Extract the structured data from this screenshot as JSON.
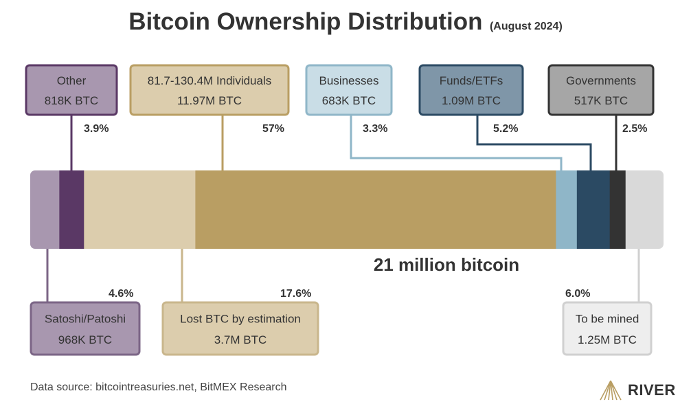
{
  "title": "Bitcoin Ownership Distribution",
  "subtitle": "(August 2024)",
  "total_label": "21 million bitcoin",
  "source": "Data source: bitcointreasuries.net, BitMEX Research",
  "brand": {
    "name": "RIVER",
    "logo_icon": "river-logo-icon",
    "color": "#B99E63"
  },
  "chart_data": {
    "type": "bar",
    "orientation": "horizontal-stacked",
    "total": "21 million bitcoin",
    "segments": [
      {
        "id": "other",
        "name": "Other",
        "value_label": "818K BTC",
        "pct_label": "3.9%",
        "pct": 3.9,
        "color": "#5A3865",
        "box_fill": "#A897AF",
        "box_stroke": "#5A3865",
        "position": "top"
      },
      {
        "id": "satoshi",
        "name": "Satoshi/Patoshi",
        "value_label": "968K BTC",
        "pct_label": "4.6%",
        "pct": 4.6,
        "color": "#A897AF",
        "box_fill": "#A897AF",
        "box_stroke": "#7B6586",
        "position": "bottom"
      },
      {
        "id": "lost",
        "name": "Lost BTC by estimation",
        "value_label": "3.7M BTC",
        "pct_label": "17.6%",
        "pct": 17.6,
        "color": "#DCCDAD",
        "box_fill": "#DCCDAD",
        "box_stroke": "#C9B68C",
        "position": "bottom"
      },
      {
        "id": "individuals",
        "name": "81.7-130.4M Individuals",
        "value_label": "11.97M BTC",
        "pct_label": "57%",
        "pct": 57,
        "color": "#B99E63",
        "box_fill": "#DCCDAD",
        "box_stroke": "#B99E63",
        "position": "top"
      },
      {
        "id": "businesses",
        "name": "Businesses",
        "value_label": "683K BTC",
        "pct_label": "3.3%",
        "pct": 3.3,
        "color": "#8FB6C8",
        "box_fill": "#C9DDE6",
        "box_stroke": "#8FB6C8",
        "position": "top"
      },
      {
        "id": "funds",
        "name": "Funds/ETFs",
        "value_label": "1.09M BTC",
        "pct_label": "5.2%",
        "pct": 5.2,
        "color": "#2B4A63",
        "box_fill": "#7F96A8",
        "box_stroke": "#2B4A63",
        "position": "top"
      },
      {
        "id": "governments",
        "name": "Governments",
        "value_label": "517K BTC",
        "pct_label": "2.5%",
        "pct": 2.5,
        "color": "#333333",
        "box_fill": "#A6A6A6",
        "box_stroke": "#333333",
        "position": "top"
      },
      {
        "id": "tobemined",
        "name": "To be mined",
        "value_label": "1.25M BTC",
        "pct_label": "6.0%",
        "pct": 6.0,
        "color": "#D9D9D9",
        "box_fill": "#EEEEEE",
        "box_stroke": "#D0D0D0",
        "position": "bottom"
      }
    ]
  }
}
